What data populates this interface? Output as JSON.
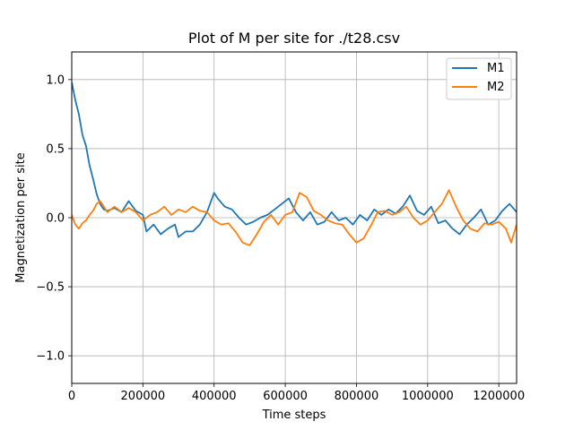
{
  "chart_data": {
    "type": "line",
    "title": "Plot of M per site for ./t28.csv",
    "xlabel": "Time steps",
    "ylabel": "Magnetization per site",
    "xlim": [
      0,
      1250000
    ],
    "ylim": [
      -1.2,
      1.2
    ],
    "xticks": [
      0,
      200000,
      400000,
      600000,
      800000,
      1000000,
      1200000
    ],
    "xtick_labels": [
      "0",
      "200000",
      "400000",
      "600000",
      "800000",
      "1000000",
      "1200000"
    ],
    "yticks": [
      -1.0,
      -0.5,
      0.0,
      0.5,
      1.0
    ],
    "ytick_labels": [
      "−1.0",
      "−0.5",
      "0.0",
      "0.5",
      "1.0"
    ],
    "grid": true,
    "legend": "top-right",
    "series": [
      {
        "name": "M1",
        "color": "#1f77b4",
        "x": [
          0,
          10000,
          20000,
          30000,
          40000,
          50000,
          60000,
          70000,
          80000,
          90000,
          100000,
          120000,
          140000,
          160000,
          180000,
          200000,
          210000,
          230000,
          250000,
          270000,
          290000,
          300000,
          320000,
          340000,
          360000,
          380000,
          400000,
          410000,
          430000,
          450000,
          470000,
          490000,
          510000,
          530000,
          550000,
          570000,
          590000,
          610000,
          630000,
          650000,
          670000,
          690000,
          710000,
          730000,
          750000,
          770000,
          790000,
          810000,
          830000,
          850000,
          870000,
          890000,
          910000,
          930000,
          950000,
          970000,
          990000,
          1010000,
          1030000,
          1050000,
          1070000,
          1090000,
          1110000,
          1130000,
          1150000,
          1170000,
          1190000,
          1210000,
          1230000,
          1250000
        ],
        "y": [
          0.98,
          0.85,
          0.75,
          0.6,
          0.52,
          0.38,
          0.28,
          0.17,
          0.1,
          0.06,
          0.05,
          0.07,
          0.04,
          0.12,
          0.05,
          0.02,
          -0.1,
          -0.05,
          -0.12,
          -0.08,
          -0.05,
          -0.14,
          -0.1,
          -0.1,
          -0.05,
          0.04,
          0.18,
          0.14,
          0.08,
          0.06,
          0.0,
          -0.05,
          -0.03,
          0.0,
          0.02,
          0.06,
          0.1,
          0.14,
          0.04,
          -0.02,
          0.04,
          -0.05,
          -0.03,
          0.04,
          -0.02,
          0.0,
          -0.05,
          0.02,
          -0.02,
          0.06,
          0.02,
          0.06,
          0.03,
          0.08,
          0.16,
          0.05,
          0.02,
          0.08,
          -0.04,
          -0.02,
          -0.08,
          -0.12,
          -0.05,
          0.0,
          0.06,
          -0.05,
          -0.02,
          0.05,
          0.1,
          0.04
        ]
      },
      {
        "name": "M2",
        "color": "#ff7f0e",
        "x": [
          0,
          10000,
          20000,
          30000,
          40000,
          50000,
          60000,
          70000,
          80000,
          100000,
          120000,
          140000,
          160000,
          180000,
          200000,
          220000,
          240000,
          260000,
          280000,
          300000,
          320000,
          340000,
          360000,
          380000,
          400000,
          420000,
          440000,
          460000,
          480000,
          500000,
          520000,
          540000,
          560000,
          580000,
          600000,
          620000,
          640000,
          660000,
          680000,
          700000,
          720000,
          740000,
          760000,
          780000,
          800000,
          820000,
          840000,
          860000,
          880000,
          900000,
          920000,
          940000,
          960000,
          980000,
          1000000,
          1020000,
          1040000,
          1060000,
          1080000,
          1100000,
          1120000,
          1140000,
          1160000,
          1180000,
          1200000,
          1220000,
          1235000,
          1250000
        ],
        "y": [
          0.02,
          -0.05,
          -0.08,
          -0.04,
          -0.02,
          0.02,
          0.05,
          0.1,
          0.12,
          0.04,
          0.08,
          0.04,
          0.07,
          0.04,
          -0.02,
          0.02,
          0.04,
          0.08,
          0.02,
          0.06,
          0.04,
          0.08,
          0.05,
          0.04,
          -0.02,
          -0.05,
          -0.04,
          -0.1,
          -0.18,
          -0.2,
          -0.12,
          -0.03,
          0.02,
          -0.05,
          0.02,
          0.04,
          0.18,
          0.15,
          0.05,
          0.02,
          -0.02,
          -0.04,
          -0.05,
          -0.12,
          -0.18,
          -0.15,
          -0.06,
          0.04,
          0.05,
          0.02,
          0.04,
          0.08,
          0.0,
          -0.05,
          -0.02,
          0.04,
          0.1,
          0.2,
          0.08,
          -0.02,
          -0.08,
          -0.1,
          -0.04,
          -0.05,
          -0.03,
          -0.08,
          -0.18,
          -0.05
        ]
      }
    ]
  }
}
